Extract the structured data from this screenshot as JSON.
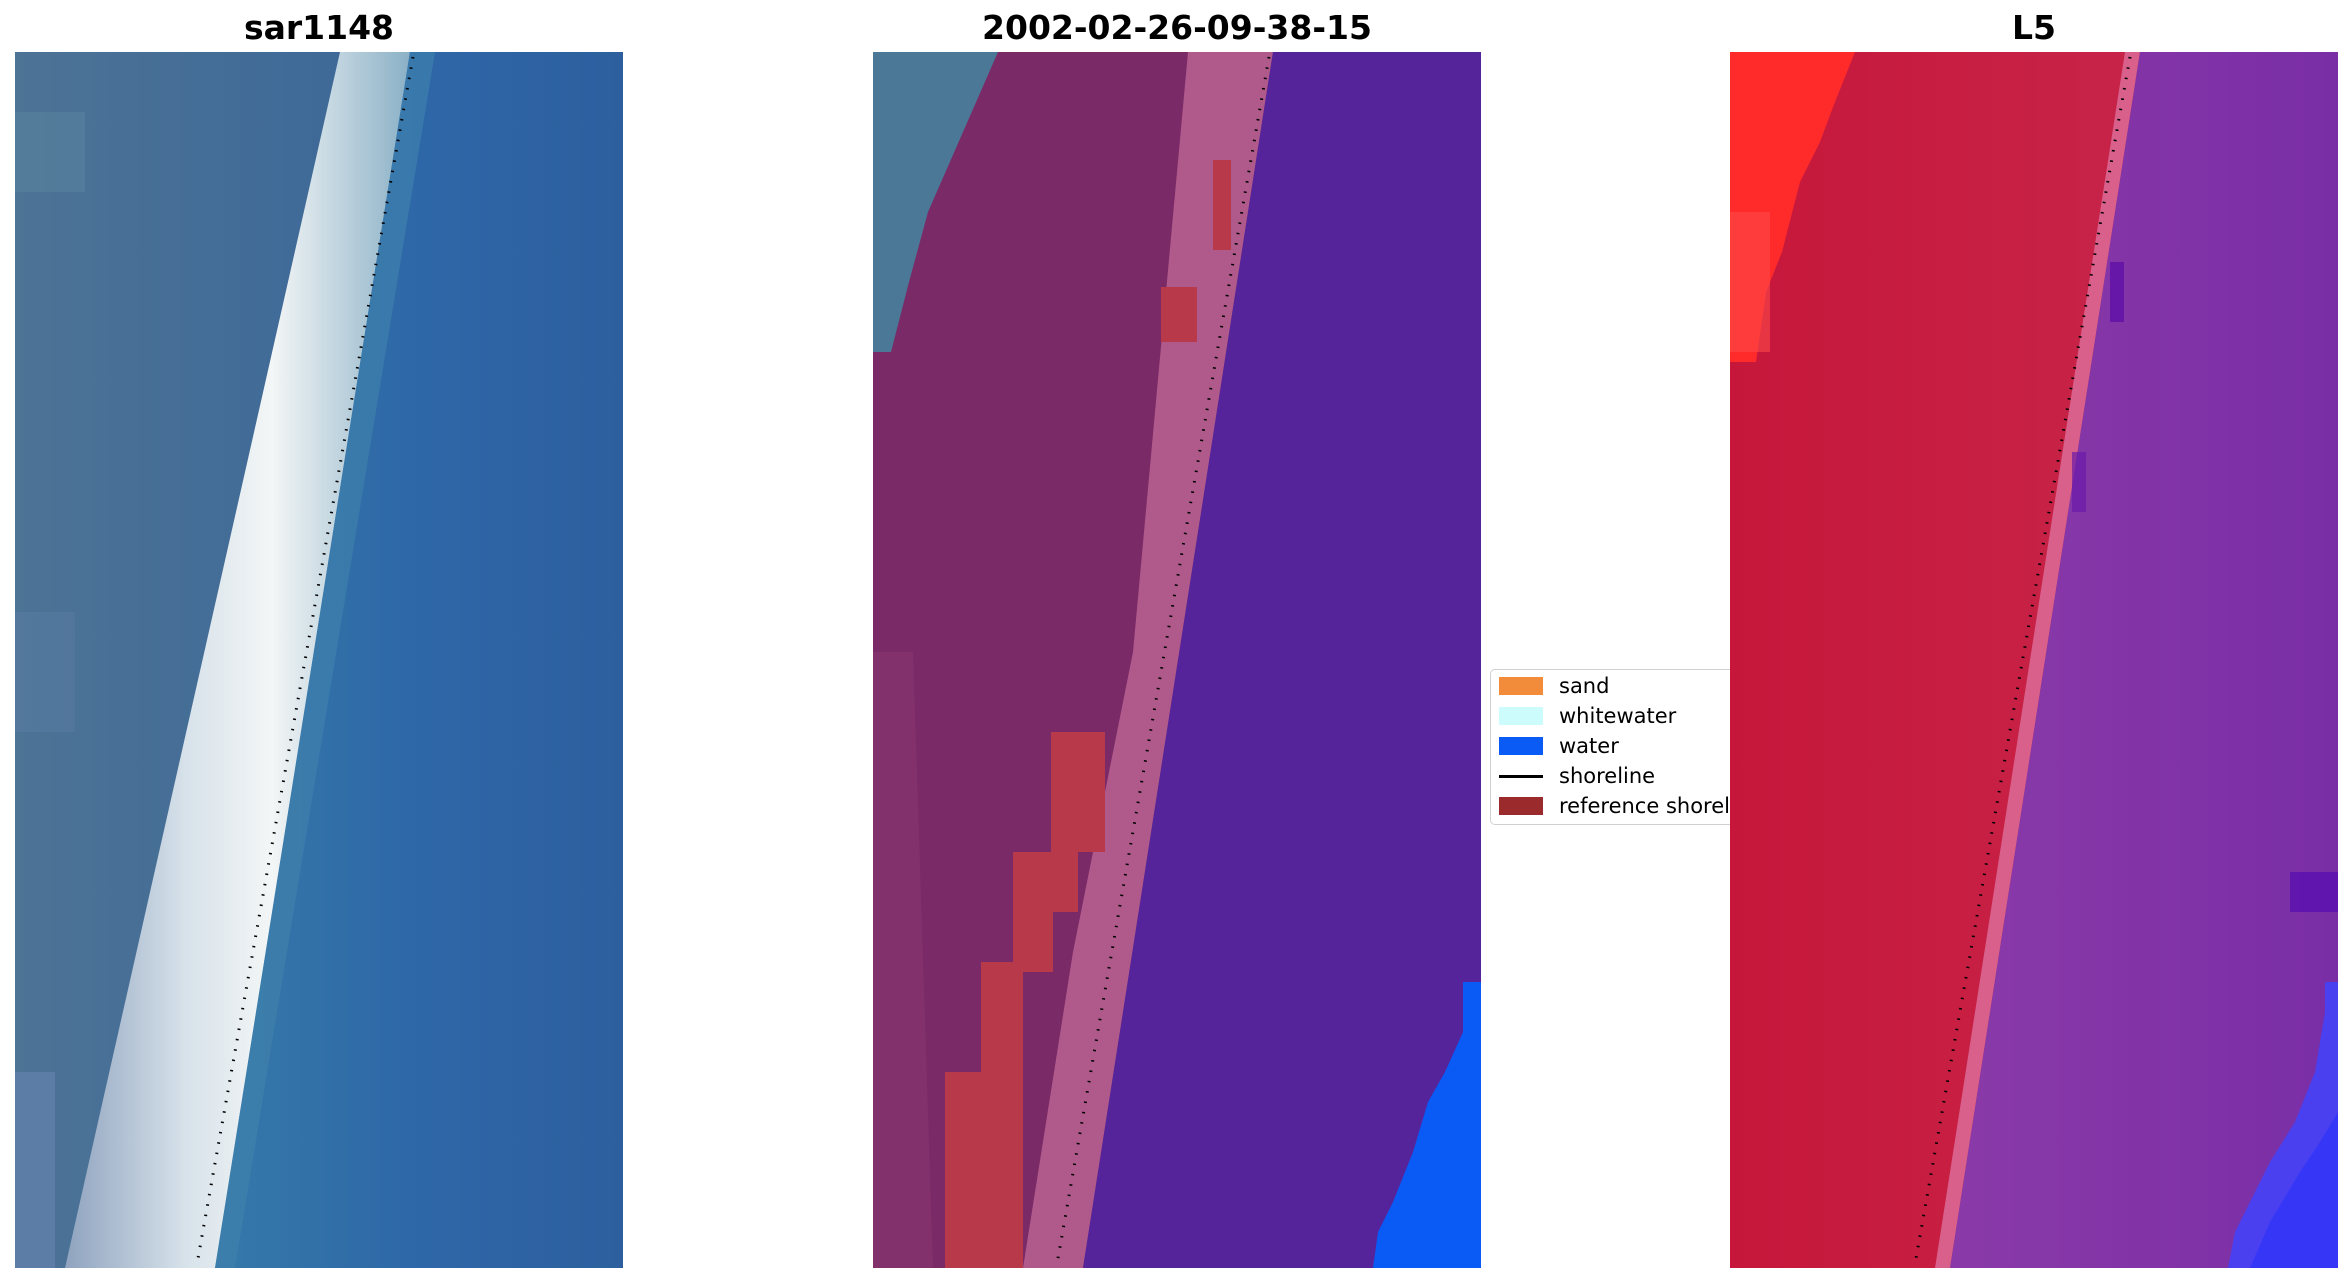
{
  "panels": {
    "sar": {
      "title": "sar1148"
    },
    "classification": {
      "title": "2002-02-26-09-38-15"
    },
    "l5": {
      "title": "L5"
    }
  },
  "legend": {
    "items": [
      {
        "label": "sand",
        "color": "#f28c3a",
        "kind": "patch"
      },
      {
        "label": "whitewater",
        "color": "#ccfcfc",
        "kind": "patch"
      },
      {
        "label": "water",
        "color": "#0a5af5",
        "kind": "patch"
      },
      {
        "label": "shoreline",
        "color": "#000000",
        "kind": "line"
      },
      {
        "label": "reference shoreline",
        "color": "#9b2a2d",
        "kind": "patch"
      }
    ]
  },
  "colors": {
    "sar_land": "#466a94",
    "sar_water": "#2f66a4",
    "sar_surf": "#e8eef2",
    "class_land": "#7a2a66",
    "class_pink": "#b05a8c",
    "class_water": "#55239a",
    "class_red": "#b83a4a",
    "class_blue": "#0a5af5",
    "class_teal": "#4a7896",
    "l5_red": "#c51a3a",
    "l5_purple": "#7a2aa0",
    "l5_bright": "#ff2020",
    "l5_blue": "#3a3af0"
  }
}
